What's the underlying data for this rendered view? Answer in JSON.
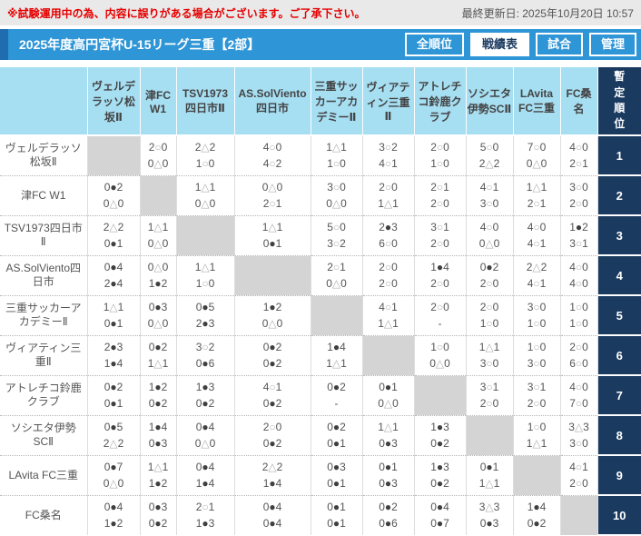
{
  "notice": "※試験運用中の為、内容に誤りがある場合がございます。ご了承下さい。",
  "last_updated": "最終更新日: 2025年10月20日 10:57",
  "header": {
    "title": "2025年度高円宮杯U-15リーグ三重【2部】",
    "buttons": [
      {
        "label": "全順位",
        "active": false
      },
      {
        "label": "戦績表",
        "active": true
      },
      {
        "label": "試合",
        "active": false
      },
      {
        "label": "管理",
        "active": false
      }
    ]
  },
  "legend": {
    "win_symbol": "○",
    "draw_symbol": "△",
    "loss_symbol": "●"
  },
  "colors": {
    "bar_blue": "#2e95d6",
    "accent_blue": "#1f6cae",
    "header_light_blue": "#a6def2",
    "rank_navy": "#1b3a60",
    "diagonal_gray": "#d4d4d4",
    "notice_red": "#e60000"
  },
  "table": {
    "rank_header": "暫定順位",
    "teams": [
      "ヴェルデラッソ松坂Ⅱ",
      "津FC W1",
      "TSV1973四日市Ⅱ",
      "AS.SolViento四日市",
      "三重サッカーアカデミーⅡ",
      "ヴィアティン三重Ⅱ",
      "アトレチコ鈴鹿クラブ",
      "ソシエタ伊勢SCⅡ",
      "LAvita FC三重",
      "FC桑名"
    ],
    "rows": [
      {
        "team": "ヴェルデラッソ松坂Ⅱ",
        "rank": "1",
        "results": [
          null,
          [
            "2○0",
            "0△0"
          ],
          [
            "2△2",
            "1○0"
          ],
          [
            "4○0",
            "4○2"
          ],
          [
            "1△1",
            "1○0"
          ],
          [
            "3○2",
            "4○1"
          ],
          [
            "2○0",
            "1○0"
          ],
          [
            "5○0",
            "2△2"
          ],
          [
            "7○0",
            "0△0"
          ],
          [
            "4○0",
            "2○1"
          ]
        ]
      },
      {
        "team": "津FC W1",
        "rank": "2",
        "results": [
          [
            "0●2",
            "0△0"
          ],
          null,
          [
            "1△1",
            "0△0"
          ],
          [
            "0△0",
            "2○1"
          ],
          [
            "3○0",
            "0△0"
          ],
          [
            "2○0",
            "1△1"
          ],
          [
            "2○1",
            "2○0"
          ],
          [
            "4○1",
            "3○0"
          ],
          [
            "1△1",
            "2○1"
          ],
          [
            "3○0",
            "2○0"
          ]
        ]
      },
      {
        "team": "TSV1973四日市Ⅱ",
        "rank": "3",
        "results": [
          [
            "2△2",
            "0●1"
          ],
          [
            "1△1",
            "0△0"
          ],
          null,
          [
            "1△1",
            "0●1"
          ],
          [
            "5○0",
            "3○2"
          ],
          [
            "2●3",
            "6○0"
          ],
          [
            "3○1",
            "2○0"
          ],
          [
            "4○0",
            "0△0"
          ],
          [
            "4○0",
            "4○1"
          ],
          [
            "1●2",
            "3○1"
          ]
        ]
      },
      {
        "team": "AS.SolViento四日市",
        "rank": "4",
        "results": [
          [
            "0●4",
            "2●4"
          ],
          [
            "0△0",
            "1●2"
          ],
          [
            "1△1",
            "1○0"
          ],
          null,
          [
            "2○1",
            "0△0"
          ],
          [
            "2○0",
            "2○0"
          ],
          [
            "1●4",
            "2○0"
          ],
          [
            "0●2",
            "2○0"
          ],
          [
            "2△2",
            "4○1"
          ],
          [
            "4○0",
            "4○0"
          ]
        ]
      },
      {
        "team": "三重サッカーアカデミーⅡ",
        "rank": "5",
        "results": [
          [
            "1△1",
            "0●1"
          ],
          [
            "0●3",
            "0△0"
          ],
          [
            "0●5",
            "2●3"
          ],
          [
            "1●2",
            "0△0"
          ],
          null,
          [
            "4○1",
            "1△1"
          ],
          [
            "2○0",
            "-"
          ],
          [
            "2○0",
            "1○0"
          ],
          [
            "3○0",
            "1○0"
          ],
          [
            "1○0",
            "1○0"
          ]
        ]
      },
      {
        "team": "ヴィアティン三重Ⅱ",
        "rank": "6",
        "results": [
          [
            "2●3",
            "1●4"
          ],
          [
            "0●2",
            "1△1"
          ],
          [
            "3○2",
            "0●6"
          ],
          [
            "0●2",
            "0●2"
          ],
          [
            "1●4",
            "1△1"
          ],
          null,
          [
            "1○0",
            "0△0"
          ],
          [
            "1△1",
            "3○0"
          ],
          [
            "1○0",
            "3○0"
          ],
          [
            "2○0",
            "6○0"
          ]
        ]
      },
      {
        "team": "アトレチコ鈴鹿クラブ",
        "rank": "7",
        "results": [
          [
            "0●2",
            "0●1"
          ],
          [
            "1●2",
            "0●2"
          ],
          [
            "1●3",
            "0●2"
          ],
          [
            "4○1",
            "0●2"
          ],
          [
            "0●2",
            "-"
          ],
          [
            "0●1",
            "0△0"
          ],
          null,
          [
            "3○1",
            "2○0"
          ],
          [
            "3○1",
            "2○0"
          ],
          [
            "4○0",
            "7○0"
          ]
        ]
      },
      {
        "team": "ソシエタ伊勢SCⅡ",
        "rank": "8",
        "results": [
          [
            "0●5",
            "2△2"
          ],
          [
            "1●4",
            "0●3"
          ],
          [
            "0●4",
            "0△0"
          ],
          [
            "2○0",
            "0●2"
          ],
          [
            "0●2",
            "0●1"
          ],
          [
            "1△1",
            "0●3"
          ],
          [
            "1●3",
            "0●2"
          ],
          null,
          [
            "1○0",
            "1△1"
          ],
          [
            "3△3",
            "3○0"
          ]
        ]
      },
      {
        "team": "LAvita FC三重",
        "rank": "9",
        "results": [
          [
            "0●7",
            "0△0"
          ],
          [
            "1△1",
            "1●2"
          ],
          [
            "0●4",
            "1●4"
          ],
          [
            "2△2",
            "1●4"
          ],
          [
            "0●3",
            "0●1"
          ],
          [
            "0●1",
            "0●3"
          ],
          [
            "1●3",
            "0●2"
          ],
          [
            "0●1",
            "1△1"
          ],
          null,
          [
            "4○1",
            "2○0"
          ]
        ]
      },
      {
        "team": "FC桑名",
        "rank": "10",
        "results": [
          [
            "0●4",
            "1●2"
          ],
          [
            "0●3",
            "0●2"
          ],
          [
            "2○1",
            "1●3"
          ],
          [
            "0●4",
            "0●4"
          ],
          [
            "0●1",
            "0●1"
          ],
          [
            "0●2",
            "0●6"
          ],
          [
            "0●4",
            "0●7"
          ],
          [
            "3△3",
            "0●3"
          ],
          [
            "1●4",
            "0●2"
          ],
          null
        ]
      }
    ]
  }
}
